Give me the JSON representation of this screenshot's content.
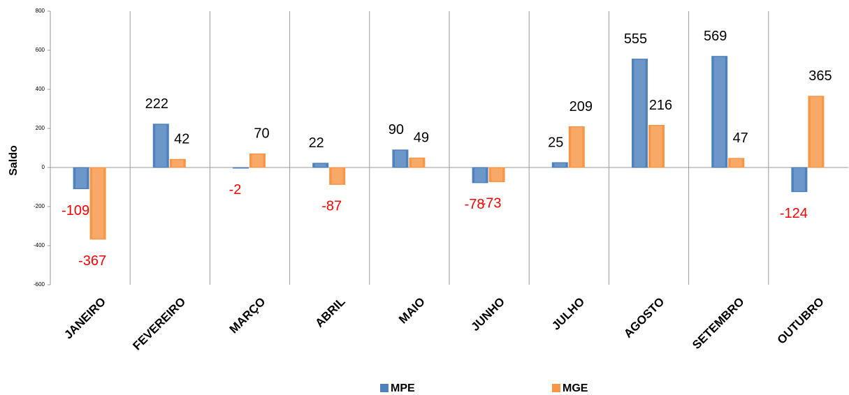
{
  "chart_data": {
    "type": "bar",
    "categories": [
      "JANEIRO",
      "FEVEREIRO",
      "MARÇO",
      "ABRIL",
      "MAIO",
      "JUNHO",
      "JULHO",
      "AGOSTO",
      "SETEMBRO",
      "OUTUBRO"
    ],
    "series": [
      {
        "name": "MPE",
        "color": "#4f81bd",
        "values": [
          -109,
          222,
          -2,
          22,
          90,
          -78,
          25,
          555,
          569,
          -124
        ]
      },
      {
        "name": "MGE",
        "color": "#f79646",
        "values": [
          -367,
          42,
          70,
          -87,
          49,
          -73,
          209,
          216,
          47,
          365
        ]
      }
    ],
    "y_label": "Saldo",
    "ylim": [
      -600,
      800
    ],
    "yticks": [
      -600,
      -400,
      -200,
      0,
      200,
      400,
      600,
      800
    ],
    "negative_label_color": "#ff0000",
    "legend": "bottom"
  }
}
